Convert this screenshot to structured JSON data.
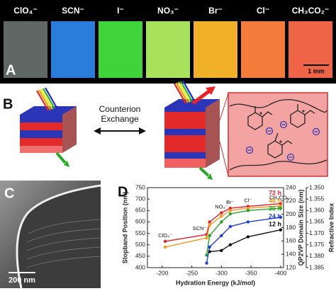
{
  "panel_a": {
    "label": "A",
    "anions": [
      "ClO₄⁻",
      "SCN⁻",
      "I⁻",
      "NO₃⁻",
      "Br⁻",
      "Cl⁻",
      "CH₃CO₂⁻"
    ],
    "scale_bar": "1 mm"
  },
  "panel_b": {
    "label": "B",
    "caption": [
      "Counterion",
      "Exchange"
    ]
  },
  "panel_c": {
    "label": "C",
    "scale_bar": "200 nm"
  },
  "chart_data": {
    "type": "line",
    "panel_label": "D",
    "x_label": "Hydration Energy (kJ/mol)",
    "y_label": "Stopband Position (nm)",
    "y2_label": "QP2VP Domain Size (nm)",
    "y3_label": "Refractive Index",
    "x": [
      -205,
      -275,
      -280,
      -300,
      -315,
      -345,
      -400
    ],
    "xlim": [
      -175,
      -405
    ],
    "xticks": [
      -200,
      -250,
      -300,
      -350,
      -400
    ],
    "ylim": [
      400,
      750
    ],
    "yticks": [
      400,
      450,
      500,
      550,
      600,
      650,
      700,
      750
    ],
    "y2lim": [
      120,
      240
    ],
    "y2ticks": [
      120,
      140,
      160,
      180,
      200,
      220,
      240
    ],
    "y3lim": [
      1.385,
      1.35
    ],
    "y3ticks": [
      {
        "value": 1.385,
        "label": "1.385"
      },
      {
        "value": 1.38,
        "label": "1.380"
      },
      {
        "value": 1.375,
        "label": "1.375"
      },
      {
        "value": 1.37,
        "label": "1.370"
      },
      {
        "value": 1.365,
        "label": "1.365"
      },
      {
        "value": 1.36,
        "label": "1.360"
      },
      {
        "value": 1.355,
        "label": "1.355"
      },
      {
        "value": 1.35,
        "label": "1.350"
      }
    ],
    "annotations": [
      "ClO₄⁻",
      "SCN⁻",
      "NO₃⁻",
      "Br⁻",
      "Cl⁻",
      "CH₃CO₂⁻"
    ],
    "series": [
      {
        "name": "72 h",
        "color": "#e8202a",
        "values": [
          515,
          545,
          600,
          640,
          660,
          668,
          680
        ]
      },
      {
        "name": "48 h",
        "color": "#f39a1e",
        "values": [
          490,
          530,
          585,
          625,
          650,
          660,
          670
        ]
      },
      {
        "name": "36 h",
        "color": "#2aa02a",
        "values": [
          null,
          455,
          540,
          600,
          635,
          650,
          660
        ]
      },
      {
        "name": "24 h",
        "color": "#1f3fd8",
        "values": [
          null,
          420,
          490,
          540,
          580,
          600,
          620
        ]
      },
      {
        "name": "12 h",
        "color": "#111111",
        "values": [
          null,
          null,
          470,
          475,
          500,
          535,
          565
        ]
      }
    ]
  }
}
